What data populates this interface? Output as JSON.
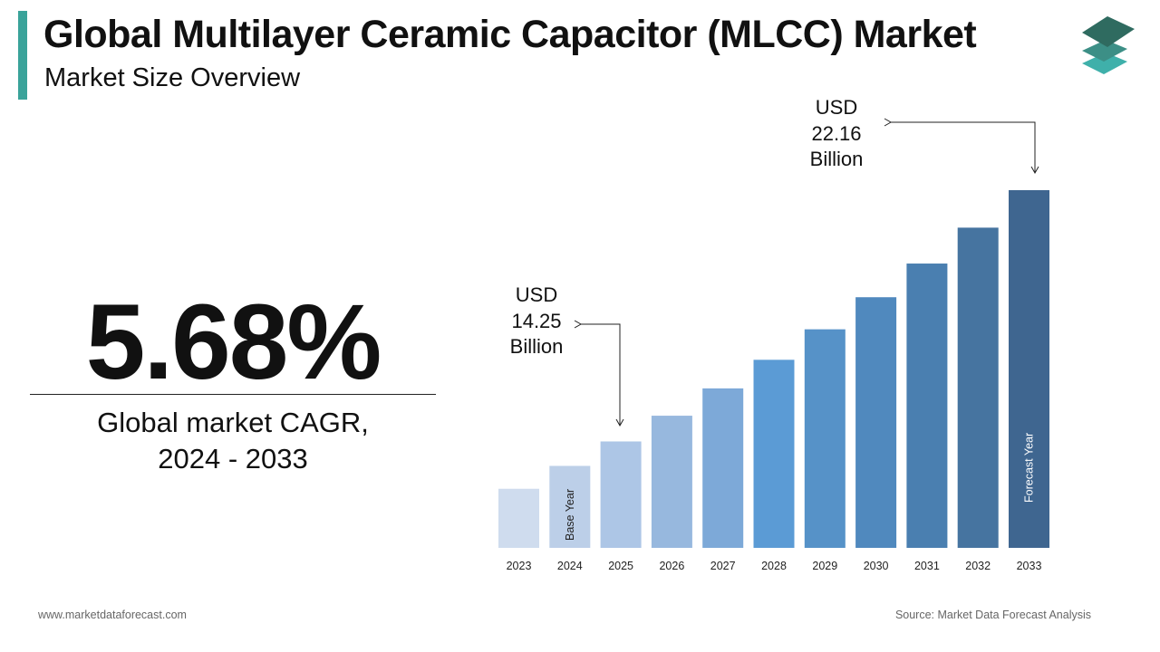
{
  "header": {
    "title": "Global Multilayer Ceramic Capacitor (MLCC) Market",
    "subtitle": "Market Size Overview",
    "accent_color": "#3aa39a",
    "logo_icon": "stacked-layers-icon"
  },
  "kpi": {
    "value": "5.68%",
    "label_line1": "Global market CAGR,",
    "label_line2": "2024 - 2033"
  },
  "annotations": [
    {
      "line1": "USD",
      "line2": "14.25",
      "line3": "Billion",
      "year": "2025"
    },
    {
      "line1": "USD",
      "line2": "22.16",
      "line3": "Billion",
      "year": "2033"
    }
  ],
  "chart_data": {
    "type": "bar",
    "categories": [
      "2023",
      "2024",
      "2025",
      "2026",
      "2027",
      "2028",
      "2029",
      "2030",
      "2031",
      "2032",
      "2033"
    ],
    "values": [
      12.76,
      13.48,
      14.25,
      15.06,
      15.92,
      16.82,
      17.78,
      18.79,
      19.85,
      20.98,
      22.16
    ],
    "ylim": [
      10.9,
      22.16
    ],
    "grid": false,
    "colors": [
      "#cfdcee",
      "#bccfe8",
      "#adc6e6",
      "#97b8de",
      "#7da9d8",
      "#5b9bd5",
      "#5692c8",
      "#5089be",
      "#4a7fb0",
      "#4674a0",
      "#3f6690"
    ],
    "bar_labels": {
      "2024": "Base Year",
      "2033": "Forecast Year"
    }
  },
  "footer": {
    "website": "www.marketdataforecast.com",
    "source": "Source: Market Data Forecast Analysis"
  }
}
